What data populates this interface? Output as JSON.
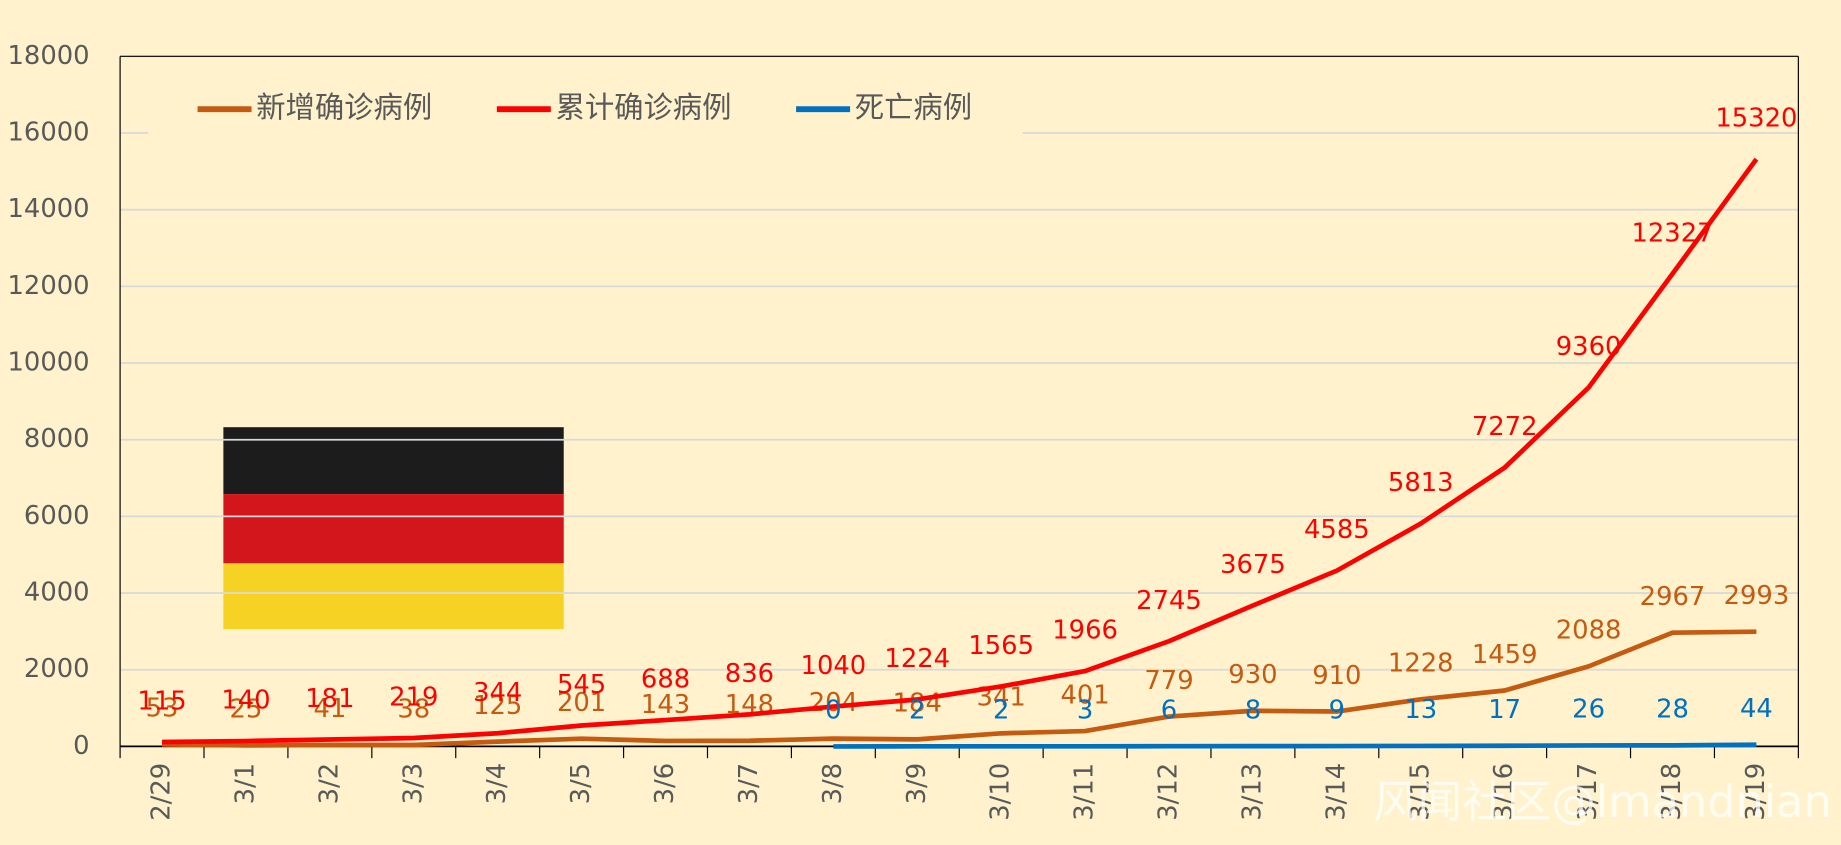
{
  "chart_data": {
    "type": "line",
    "categories": [
      "2/29",
      "3/1",
      "3/2",
      "3/3",
      "3/4",
      "3/5",
      "3/6",
      "3/7",
      "3/8",
      "3/9",
      "3/10",
      "3/11",
      "3/12",
      "3/13",
      "3/14",
      "3/15",
      "3/16",
      "3/17",
      "3/18",
      "3/19"
    ],
    "series": [
      {
        "name": "新增确诊病例",
        "color": "#c55a11",
        "values": [
          53,
          25,
          41,
          38,
          125,
          201,
          143,
          148,
          204,
          184,
          341,
          401,
          779,
          930,
          910,
          1228,
          1459,
          2088,
          2967,
          2993
        ]
      },
      {
        "name": "累计确诊病例",
        "color": "#ff0000",
        "values": [
          115,
          140,
          181,
          219,
          344,
          545,
          688,
          836,
          1040,
          1224,
          1565,
          1966,
          2745,
          3675,
          4585,
          5813,
          7272,
          9360,
          12327,
          15320
        ]
      },
      {
        "name": "死亡病例",
        "color": "#0070c0",
        "values": [
          null,
          null,
          null,
          null,
          null,
          null,
          null,
          null,
          0,
          2,
          2,
          3,
          6,
          8,
          9,
          13,
          17,
          26,
          28,
          44
        ]
      }
    ],
    "ylim": [
      0,
      18000
    ],
    "yticks": [
      0,
      2000,
      4000,
      6000,
      8000,
      10000,
      12000,
      14000,
      16000,
      18000
    ],
    "grid": true,
    "legend": "top-left",
    "watermark": "风闻社区@lmandnian"
  }
}
